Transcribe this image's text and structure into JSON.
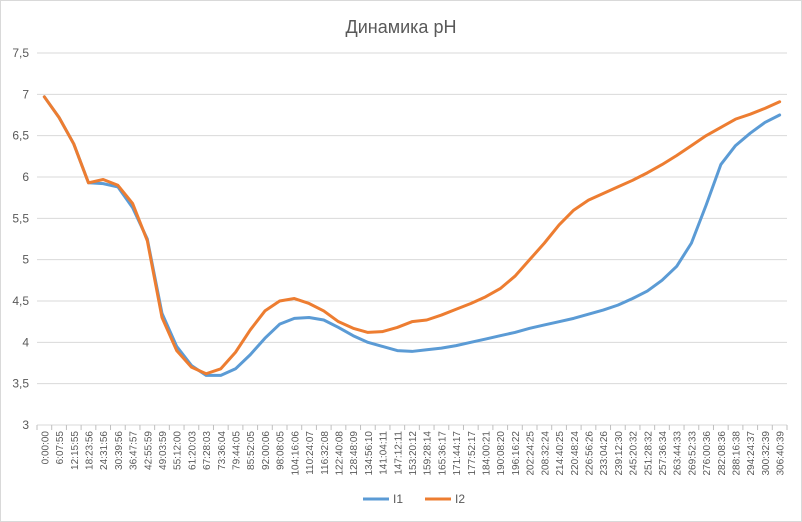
{
  "chart_data": {
    "type": "line",
    "title": "Динамика pH",
    "xlabel": "",
    "ylabel": "",
    "ylim": [
      3,
      7.5
    ],
    "yticks": [
      "3",
      "3,5",
      "4",
      "4,5",
      "5",
      "5,5",
      "6",
      "6,5",
      "7",
      "7,5"
    ],
    "ytick_values": [
      3,
      3.5,
      4,
      4.5,
      5,
      5.5,
      6,
      6.5,
      7,
      7.5
    ],
    "categories": [
      "0:00:00",
      "6:07:55",
      "12:15:55",
      "18:23:56",
      "24:31:56",
      "30:39:56",
      "36:47:57",
      "42:55:59",
      "49:03:59",
      "55:12:00",
      "61:20:03",
      "67:28:03",
      "73:36:04",
      "79:44:05",
      "85:52:05",
      "92:00:06",
      "98:08:05",
      "104:16:06",
      "110:24:07",
      "116:32:08",
      "122:40:08",
      "128:48:09",
      "134:56:10",
      "141:04:11",
      "147:12:11",
      "153:20:12",
      "159:28:14",
      "165:36:17",
      "171:44:17",
      "177:52:17",
      "184:00:21",
      "190:08:20",
      "196:16:22",
      "202:24:25",
      "208:32:24",
      "214:40:25",
      "220:48:24",
      "226:56:26",
      "233:04:26",
      "239:12:30",
      "245:20:32",
      "251:28:32",
      "257:36:34",
      "263:44:33",
      "269:52:33",
      "276:00:36",
      "282:08:36",
      "288:16:38",
      "294:24:37",
      "300:32:39",
      "306:40:39"
    ],
    "grid": true,
    "legend_position": "bottom",
    "series": [
      {
        "name": "I1",
        "color": "#5b9bd5",
        "values": [
          6.97,
          6.72,
          6.4,
          5.93,
          5.92,
          5.88,
          5.63,
          5.25,
          4.35,
          3.95,
          3.72,
          3.6,
          3.6,
          3.68,
          3.85,
          4.05,
          4.22,
          4.29,
          4.3,
          4.27,
          4.18,
          4.08,
          4.0,
          3.95,
          3.9,
          3.89,
          3.91,
          3.93,
          3.96,
          4.0,
          4.04,
          4.08,
          4.12,
          4.17,
          4.21,
          4.25,
          4.29,
          4.34,
          4.39,
          4.45,
          4.53,
          4.62,
          4.75,
          4.92,
          5.2,
          5.66,
          6.15,
          6.38,
          6.53,
          6.66,
          6.75
        ]
      },
      {
        "name": "I2",
        "color": "#ed7d31",
        "values": [
          6.97,
          6.72,
          6.4,
          5.93,
          5.97,
          5.9,
          5.68,
          5.23,
          4.3,
          3.9,
          3.7,
          3.62,
          3.68,
          3.88,
          4.15,
          4.38,
          4.5,
          4.53,
          4.47,
          4.38,
          4.25,
          4.17,
          4.12,
          4.13,
          4.18,
          4.25,
          4.27,
          4.33,
          4.4,
          4.47,
          4.55,
          4.65,
          4.8,
          5.0,
          5.2,
          5.42,
          5.6,
          5.72,
          5.8,
          5.88,
          5.96,
          6.05,
          6.15,
          6.26,
          6.38,
          6.5,
          6.6,
          6.7,
          6.76,
          6.83,
          6.91
        ]
      }
    ]
  }
}
